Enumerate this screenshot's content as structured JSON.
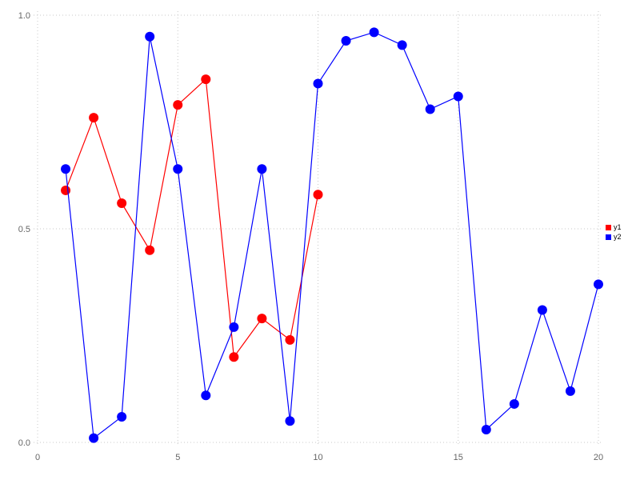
{
  "figure": {
    "background": "#ffffff",
    "grid_color": "#c8c8c8",
    "tick_label_color": "#666666"
  },
  "chart_data": {
    "type": "line",
    "title": "",
    "xlabel": "",
    "ylabel": "",
    "xlim": [
      0,
      20
    ],
    "ylim": [
      0.0,
      1.0
    ],
    "x_ticks": [
      0,
      5,
      10,
      15,
      20
    ],
    "x_tick_labels": [
      "0",
      "5",
      "10",
      "15",
      "20"
    ],
    "y_ticks": [
      0.0,
      0.5,
      1.0
    ],
    "y_tick_labels": [
      "0.0",
      "0.5",
      "1.0"
    ],
    "grid": "dotted",
    "legend_position": "right",
    "marker": "circle",
    "series": [
      {
        "name": "y1",
        "color": "#ff0000",
        "x": [
          1,
          2,
          3,
          4,
          5,
          6,
          7,
          8,
          9,
          10
        ],
        "values": [
          0.59,
          0.76,
          0.56,
          0.45,
          0.79,
          0.85,
          0.2,
          0.29,
          0.24,
          0.58
        ]
      },
      {
        "name": "y2",
        "color": "#0000ff",
        "x": [
          1,
          2,
          3,
          4,
          5,
          6,
          7,
          8,
          9,
          10,
          11,
          12,
          13,
          14,
          15,
          16,
          17,
          18,
          19,
          20
        ],
        "values": [
          0.64,
          0.01,
          0.06,
          0.95,
          0.64,
          0.11,
          0.27,
          0.64,
          0.05,
          0.84,
          0.94,
          0.96,
          0.93,
          0.78,
          0.81,
          0.03,
          0.09,
          0.31,
          0.12,
          0.37
        ]
      }
    ]
  },
  "legend": {
    "items": [
      {
        "label": "y1",
        "color": "#ff0000"
      },
      {
        "label": "y2",
        "color": "#0000ff"
      }
    ]
  }
}
